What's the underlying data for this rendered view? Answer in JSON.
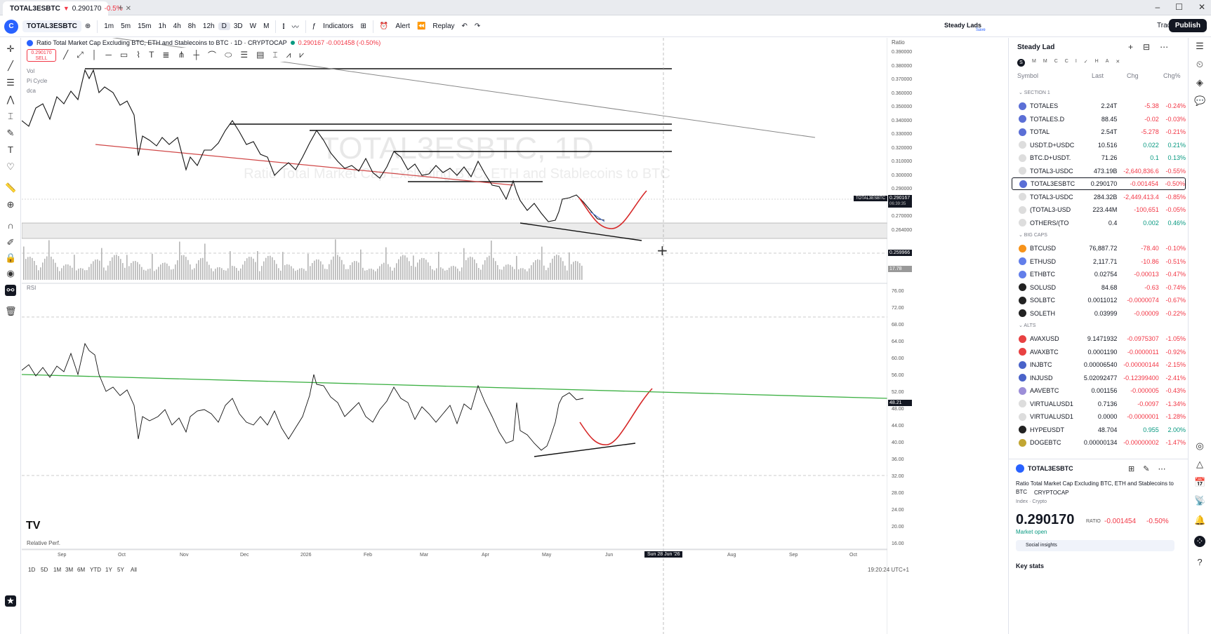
{
  "tab": {
    "symbol": "TOTAL3ESBTC",
    "price": "0.290170",
    "change": "-0.5%"
  },
  "toolbar": {
    "symbol": "TOTAL3ESBTC",
    "intervals": [
      "1m",
      "5m",
      "15m",
      "1h",
      "4h",
      "8h",
      "12h",
      "D",
      "3D",
      "W",
      "M"
    ],
    "indicators": "Indicators",
    "alert": "Alert",
    "replay": "Replay",
    "account": "Steady Lads",
    "account_sub": "Save",
    "trade": "Trade",
    "publish": "Publish"
  },
  "chart": {
    "title": "Ratio Total Market Cap Excluding BTC, ETH and Stablecoins to BTC · 1D · CRYPTOCAP",
    "ohlc": "0.290167 -0.001458 (-0.50%)",
    "sell_price": "0.290170",
    "sell_label": "SELL",
    "legend": [
      "Vol",
      "Pi Cycle",
      "dca"
    ],
    "rsi_label": "RSI",
    "relative": "Relative Perf.",
    "watermark": "TOTAL3ESBTC, 1D",
    "watermark_sub": "Ratio Total Market Cap Excluding BTC, ETH and Stablecoins to BTC",
    "axis_title": "Ratio",
    "price_ticks": [
      "0.390000",
      "0.380000",
      "0.370000",
      "0.360000",
      "0.350000",
      "0.340000",
      "0.330000",
      "0.320000",
      "0.310000",
      "0.300000",
      "0.290000",
      "0.280000",
      "0.270000",
      "0.264000"
    ],
    "rsi_ticks": [
      "76.00",
      "72.00",
      "68.00",
      "64.00",
      "60.00",
      "56.00",
      "52.00",
      "48.00",
      "44.00",
      "40.00",
      "36.00",
      "32.00",
      "28.00",
      "24.00",
      "20.00",
      "16.00"
    ],
    "price_tag_sym": "TOTAL3ESBTC",
    "price_tag": "0.290167",
    "countdown": "06:39:35",
    "cross_price": "0.259966",
    "vol_tag": "17.78",
    "rsi_tag": "48.21",
    "dates": [
      "Sep",
      "Oct",
      "Nov",
      "Dec",
      "2026",
      "Feb",
      "Mar",
      "Apr",
      "May",
      "Jun",
      "Aug",
      "Sep",
      "Oct"
    ],
    "cross_date": "Sun 28 Jun '26",
    "timeframes": [
      "1D",
      "5D",
      "1M",
      "3M",
      "6M",
      "YTD",
      "1Y",
      "5Y",
      "All"
    ],
    "clock": "19:20:24 UTC+1"
  },
  "watchlist": {
    "title": "Steady Lad",
    "cols": [
      "Symbol",
      "Last",
      "Chg",
      "Chg%"
    ],
    "sections": [
      {
        "name": "SECTION 1",
        "rows": [
          {
            "s": "TOTALES",
            "l": "2.24T",
            "c": "-5.38",
            "p": "-0.24%",
            "col": "#5b6fd6",
            "cls": "neg"
          },
          {
            "s": "TOTALES.D",
            "l": "88.45",
            "c": "-0.02",
            "p": "-0.03%",
            "col": "#5b6fd6",
            "cls": "neg"
          },
          {
            "s": "TOTAL",
            "l": "2.54T",
            "c": "-5.278",
            "p": "-0.21%",
            "col": "#5b6fd6",
            "cls": "neg"
          },
          {
            "s": "USDT.D+USDC",
            "l": "10.516",
            "c": "0.022",
            "p": "0.21%",
            "col": "#ddd",
            "cls": "pos"
          },
          {
            "s": "BTC.D+USDT.",
            "l": "71.26",
            "c": "0.1",
            "p": "0.13%",
            "col": "#ddd",
            "cls": "pos"
          },
          {
            "s": "TOTAL3-USDC",
            "l": "473.19B",
            "c": "-2,640,836.6",
            "p": "-0.55%",
            "col": "#ddd",
            "cls": "neg"
          },
          {
            "s": "TOTAL3ESBTC",
            "l": "0.290170",
            "c": "-0.001454",
            "p": "-0.50%",
            "col": "#5b6fd6",
            "cls": "neg"
          },
          {
            "s": "TOTAL3-USDC",
            "l": "284.32B",
            "c": "-2,449,413.4",
            "p": "-0.85%",
            "col": "#ddd",
            "cls": "neg"
          },
          {
            "s": "(TOTAL3-USD",
            "l": "223.44M",
            "c": "-100,651",
            "p": "-0.05%",
            "col": "#ddd",
            "cls": "neg"
          },
          {
            "s": "OTHERS/(TO",
            "l": "0.4",
            "c": "0.002",
            "p": "0.46%",
            "col": "#ddd",
            "cls": "pos"
          }
        ]
      },
      {
        "name": "BIG CAPS",
        "rows": [
          {
            "s": "BTCUSD",
            "l": "76,887.72",
            "c": "-78.40",
            "p": "-0.10%",
            "col": "#f7931a",
            "cls": "neg"
          },
          {
            "s": "ETHUSD",
            "l": "2,117.71",
            "c": "-10.86",
            "p": "-0.51%",
            "col": "#627eea",
            "cls": "neg"
          },
          {
            "s": "ETHBTC",
            "l": "0.02754",
            "c": "-0.00013",
            "p": "-0.47%",
            "col": "#627eea",
            "cls": "neg"
          },
          {
            "s": "SOLUSD",
            "l": "84.68",
            "c": "-0.63",
            "p": "-0.74%",
            "col": "#222",
            "cls": "neg"
          },
          {
            "s": "SOLBTC",
            "l": "0.0011012",
            "c": "-0.0000074",
            "p": "-0.67%",
            "col": "#222",
            "cls": "neg"
          },
          {
            "s": "SOLETH",
            "l": "0.03999",
            "c": "-0.00009",
            "p": "-0.22%",
            "col": "#222",
            "cls": "neg"
          }
        ]
      },
      {
        "name": "ALTS",
        "rows": [
          {
            "s": "AVAXUSD",
            "l": "9.1471932",
            "c": "-0.0975307",
            "p": "-1.05%",
            "col": "#e84142",
            "cls": "neg"
          },
          {
            "s": "AVAXBTC",
            "l": "0.0001190",
            "c": "-0.0000011",
            "p": "-0.92%",
            "col": "#e84142",
            "cls": "neg"
          },
          {
            "s": "INJBTC",
            "l": "0.00006540",
            "c": "-0.00000144",
            "p": "-2.15%",
            "col": "#4a63c9",
            "cls": "neg"
          },
          {
            "s": "INJUSD",
            "l": "5.02092477",
            "c": "-0.12399400",
            "p": "-2.41%",
            "col": "#4a63c9",
            "cls": "neg"
          },
          {
            "s": "AAVEBTC",
            "l": "0.001156",
            "c": "-0.000005",
            "p": "-0.43%",
            "col": "#9c8ed8",
            "cls": "neg"
          },
          {
            "s": "VIRTUALUSD1",
            "l": "0.7136",
            "c": "-0.0097",
            "p": "-1.34%",
            "col": "#ddd",
            "cls": "neg"
          },
          {
            "s": "VIRTUALUSD1",
            "l": "0.0000",
            "c": "-0.0000001",
            "p": "-1.28%",
            "col": "#ddd",
            "cls": "neg"
          },
          {
            "s": "HYPEUSDT",
            "l": "48.704",
            "c": "0.955",
            "p": "2.00%",
            "col": "#222",
            "cls": "pos"
          },
          {
            "s": "DOGEBTC",
            "l": "0.00000134",
            "c": "-0.00000002",
            "p": "-1.47%",
            "col": "#c2a633",
            "cls": "neg"
          }
        ]
      }
    ],
    "detail": {
      "symbol": "TOTAL3ESBTC",
      "desc": "Ratio Total Market Cap Excluding BTC, ETH and Stablecoins to BTC",
      "source": "CRYPTOCAP",
      "cat": "Index · Crypto",
      "price": "0.290170",
      "unit": "RATIO",
      "chg": "-0.001454",
      "pct": "-0.50%",
      "status": "Market open",
      "insights": "Social insights",
      "keystats": "Key stats"
    }
  }
}
